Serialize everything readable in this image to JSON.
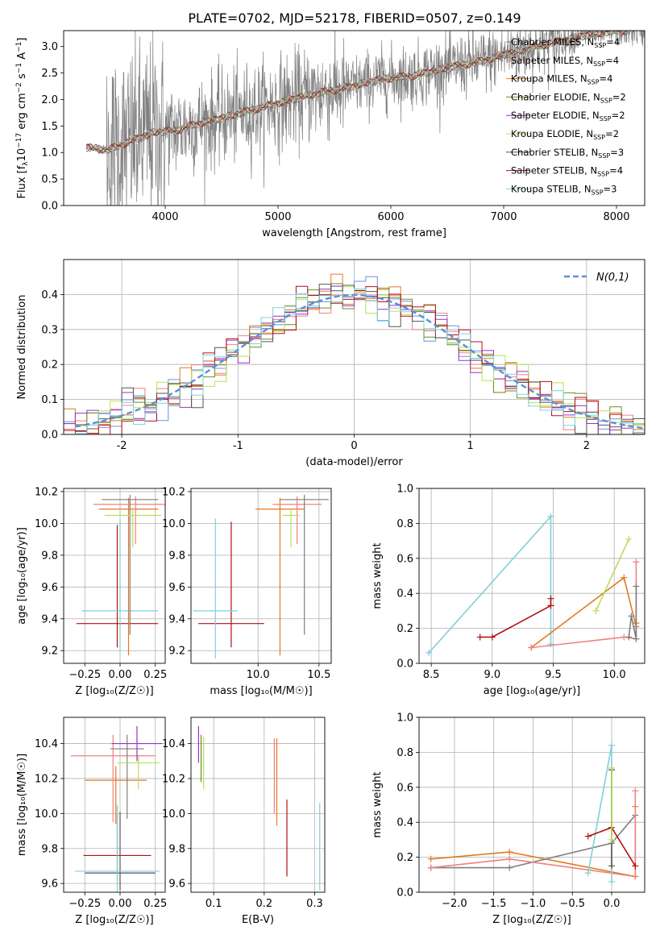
{
  "figure": {
    "title": "PLATE=0702, MJD=52178, FIBERID=0507, z=0.149"
  },
  "models": [
    {
      "name": "Chabrier MILES",
      "nssp": 4,
      "color": "#7f7f7f"
    },
    {
      "name": "Salpeter MILES",
      "nssp": 4,
      "color": "#f08080"
    },
    {
      "name": "Kroupa MILES",
      "nssp": 4,
      "color": "#e07b20"
    },
    {
      "name": "Chabrier ELODIE",
      "nssp": 2,
      "color": "#6b8e23"
    },
    {
      "name": "Salpeter ELODIE",
      "nssp": 2,
      "color": "#9b30c8"
    },
    {
      "name": "Kroupa ELODIE",
      "nssp": 2,
      "color": "#b8e05a"
    },
    {
      "name": "Chabrier STELIB",
      "nssp": 3,
      "color": "#555555"
    },
    {
      "name": "Salpeter STELIB",
      "nssp": 4,
      "color": "#b01010"
    },
    {
      "name": "Kroupa STELIB",
      "nssp": 3,
      "color": "#80d0d8"
    }
  ],
  "chart_data": [
    {
      "id": "spectrum",
      "type": "line",
      "xlabel": "wavelength [Angstrom, rest frame]",
      "ylabel_parts": {
        "a": "Flux [f",
        "b": "λ",
        "c": "10",
        "d": "−17",
        "e": " erg cm",
        "f": "−2",
        "g": " s",
        "h": "−1",
        "i": " A",
        "j": "−1",
        "k": "]"
      },
      "xlim": [
        3100,
        8250
      ],
      "ylim": [
        0,
        3.3
      ],
      "xticks": [
        4000,
        5000,
        6000,
        7000,
        8000
      ],
      "yticks": [
        0.0,
        0.5,
        1.0,
        1.5,
        2.0,
        2.5,
        3.0
      ],
      "model_continuum": {
        "x": [
          3300,
          3500,
          3700,
          3900,
          4100,
          4300,
          4500,
          4800,
          5000,
          5300,
          5600,
          5900,
          6200,
          6500,
          6800,
          7100,
          7400,
          7700,
          8000
        ],
        "y": [
          1.1,
          1.05,
          1.22,
          1.38,
          1.42,
          1.55,
          1.65,
          1.82,
          1.93,
          2.1,
          2.22,
          2.38,
          2.45,
          2.6,
          2.72,
          2.9,
          3.05,
          3.2,
          3.3
        ]
      }
    },
    {
      "id": "residuals",
      "type": "step",
      "xlabel": "(data-model)/error",
      "ylabel": "Normed distribution",
      "xlim": [
        -2.5,
        2.5
      ],
      "ylim": [
        0,
        0.5
      ],
      "xticks": [
        -2,
        -1,
        0,
        1,
        2
      ],
      "yticks": [
        0.0,
        0.1,
        0.2,
        0.3,
        0.4
      ],
      "legend": "N(0,1)",
      "legend_position": "top-right",
      "reference_curve": "standard normal"
    },
    {
      "id": "age-vs-Z",
      "type": "errorbar",
      "xlabel": "Z [log₁₀(Z/Z☉)]",
      "ylabel": "age  [log₁₀(age/yr)]",
      "xlim": [
        -0.4,
        0.32
      ],
      "ylim": [
        9.12,
        10.22
      ],
      "xticks": [
        -0.25,
        0.0,
        0.25
      ],
      "yticks": [
        9.2,
        9.4,
        9.6,
        9.8,
        10.0,
        10.2
      ],
      "points": [
        {
          "model": 7,
          "x": -0.02,
          "xerr": [
            0.29,
            0.29
          ],
          "y": 9.37,
          "yerr": [
            0.15,
            0.62
          ]
        },
        {
          "model": 8,
          "x": 0.0,
          "xerr": [
            0.27,
            0.27
          ],
          "y": 9.45,
          "yerr": [
            0.25,
            0.58
          ]
        },
        {
          "model": 2,
          "x": 0.06,
          "xerr": [
            0.21,
            0.21
          ],
          "y": 10.09,
          "yerr": [
            0.92,
            0.07
          ]
        },
        {
          "model": 1,
          "x": 0.11,
          "xerr": [
            0.3,
            0.3
          ],
          "y": 10.12,
          "yerr": [
            0.25,
            0.05
          ]
        },
        {
          "model": 0,
          "x": 0.07,
          "xerr": [
            0.2,
            0.2
          ],
          "y": 10.15,
          "yerr": [
            0.85,
            0.03
          ]
        },
        {
          "model": 5,
          "x": 0.09,
          "xerr": [
            0.2,
            0.2
          ],
          "y": 10.05,
          "yerr": [
            0.2,
            0.05
          ]
        }
      ]
    },
    {
      "id": "age-vs-mass",
      "type": "errorbar",
      "xlabel": "mass [log₁₀(M/M☉)]",
      "ylabel": "",
      "xlim": [
        9.45,
        10.6
      ],
      "ylim": [
        9.12,
        10.22
      ],
      "xticks": [
        10.0,
        10.5
      ],
      "yticks": [
        9.2,
        9.4,
        9.6,
        9.8,
        10.0,
        10.2
      ],
      "points": [
        {
          "model": 7,
          "x": 9.78,
          "xerr": [
            0.27,
            0.27
          ],
          "y": 9.37,
          "yerr": [
            0.15,
            0.64
          ]
        },
        {
          "model": 8,
          "x": 9.65,
          "xerr": [
            0.18,
            0.18
          ],
          "y": 9.45,
          "yerr": [
            0.3,
            0.58
          ]
        },
        {
          "model": 2,
          "x": 10.18,
          "xerr": [
            0.2,
            0.2
          ],
          "y": 10.09,
          "yerr": [
            0.92,
            0.07
          ]
        },
        {
          "model": 1,
          "x": 10.32,
          "xerr": [
            0.2,
            0.2
          ],
          "y": 10.12,
          "yerr": [
            0.25,
            0.05
          ]
        },
        {
          "model": 0,
          "x": 10.38,
          "xerr": [
            0.2,
            0.2
          ],
          "y": 10.15,
          "yerr": [
            0.85,
            0.03
          ]
        },
        {
          "model": 5,
          "x": 10.27,
          "xerr": [
            0.07,
            0.07
          ],
          "y": 10.05,
          "yerr": [
            0.2,
            0.05
          ]
        }
      ]
    },
    {
      "id": "weight-vs-age",
      "type": "line",
      "xlabel": "age  [log₁₀(age/yr)]",
      "ylabel": "mass weight",
      "xlim": [
        8.4,
        10.25
      ],
      "ylim": [
        0,
        1.0
      ],
      "xticks": [
        8.5,
        9.0,
        9.5,
        10.0
      ],
      "yticks": [
        0.0,
        0.2,
        0.4,
        0.6,
        0.8,
        1.0
      ],
      "series": [
        {
          "model": 8,
          "x": [
            8.48,
            9.48,
            9.48
          ],
          "y": [
            0.06,
            0.84,
            0.11
          ]
        },
        {
          "model": 7,
          "x": [
            8.9,
            9.0,
            9.48,
            9.48
          ],
          "y": [
            0.15,
            0.15,
            0.33,
            0.37
          ]
        },
        {
          "model": 2,
          "x": [
            9.32,
            10.08,
            10.18,
            10.18
          ],
          "y": [
            0.09,
            0.49,
            0.21,
            0.23
          ]
        },
        {
          "model": 1,
          "x": [
            9.32,
            10.08,
            10.18,
            10.18
          ],
          "y": [
            0.09,
            0.15,
            0.14,
            0.58
          ]
        },
        {
          "model": 5,
          "x": [
            9.85,
            10.12
          ],
          "y": [
            0.3,
            0.71
          ]
        },
        {
          "model": 0,
          "x": [
            10.12,
            10.14,
            10.18,
            10.18
          ],
          "y": [
            0.15,
            0.27,
            0.14,
            0.44
          ]
        }
      ]
    },
    {
      "id": "mass-vs-Z",
      "type": "errorbar",
      "xlabel": "Z [log₁₀(Z/Z☉)]",
      "ylabel": "mass [log₁₀(M/M☉)]",
      "xlim": [
        -0.4,
        0.32
      ],
      "ylim": [
        9.55,
        10.55
      ],
      "xticks": [
        -0.25,
        0.0,
        0.25
      ],
      "yticks": [
        9.6,
        9.8,
        10.0,
        10.2,
        10.4
      ],
      "points": [
        {
          "model": 7,
          "x": -0.02,
          "xerr": [
            0.24,
            0.24
          ],
          "y": 9.76,
          "yerr": [
            0.12,
            0.24
          ]
        },
        {
          "model": 6,
          "x": 0.0,
          "xerr": [
            0.25,
            0.25
          ],
          "y": 9.66,
          "yerr": [
            0.1,
            0.35
          ]
        },
        {
          "model": 8,
          "x": -0.02,
          "xerr": [
            0.3,
            0.3
          ],
          "y": 9.67,
          "yerr": [
            0.12,
            0.38
          ]
        },
        {
          "model": 2,
          "x": -0.03,
          "xerr": [
            0.22,
            0.22
          ],
          "y": 10.19,
          "yerr": [
            0.25,
            0.08
          ]
        },
        {
          "model": 1,
          "x": -0.05,
          "xerr": [
            0.3,
            0.3
          ],
          "y": 10.33,
          "yerr": [
            0.38,
            0.12
          ]
        },
        {
          "model": 0,
          "x": 0.05,
          "xerr": [
            0.12,
            0.12
          ],
          "y": 10.37,
          "yerr": [
            0.4,
            0.08
          ]
        },
        {
          "model": 5,
          "x": 0.13,
          "xerr": [
            0.15,
            0.15
          ],
          "y": 10.29,
          "yerr": [
            0.15,
            0.04
          ]
        },
        {
          "model": 4,
          "x": 0.12,
          "xerr": [
            0.18,
            0.18
          ],
          "y": 10.4,
          "yerr": [
            0.1,
            0.1
          ]
        }
      ]
    },
    {
      "id": "mass-vs-ebv",
      "type": "errorbar",
      "xlabel": "E(B-V)",
      "ylabel": "",
      "xlim": [
        0.055,
        0.32
      ],
      "ylim": [
        9.55,
        10.55
      ],
      "xticks": [
        0.1,
        0.2,
        0.3
      ],
      "yticks": [
        9.6,
        9.8,
        10.0,
        10.2,
        10.4
      ],
      "points": [
        {
          "model": 4,
          "x": 0.07,
          "y": 10.4,
          "yerr": [
            0.11,
            0.1
          ]
        },
        {
          "model": 5,
          "x": 0.08,
          "y": 10.29,
          "yerr": [
            0.15,
            0.15
          ]
        },
        {
          "model": 3,
          "x": 0.075,
          "y": 10.3,
          "yerr": [
            0.12,
            0.15
          ]
        },
        {
          "model": 1,
          "x": 0.22,
          "y": 10.3,
          "yerr": [
            0.3,
            0.13
          ]
        },
        {
          "model": 2,
          "x": 0.225,
          "y": 10.18,
          "yerr": [
            0.25,
            0.25
          ]
        },
        {
          "model": 7,
          "x": 0.245,
          "y": 9.86,
          "yerr": [
            0.22,
            0.22
          ]
        },
        {
          "model": 8,
          "x": 0.31,
          "y": 9.78,
          "yerr": [
            0.22,
            0.28
          ]
        }
      ]
    },
    {
      "id": "weight-vs-Z",
      "type": "line",
      "xlabel": "Z [log₁₀(Z/Z☉)]",
      "ylabel": "mass weight",
      "xlim": [
        -2.45,
        0.42
      ],
      "ylim": [
        0,
        1.0
      ],
      "xticks": [
        -2.0,
        -1.5,
        -1.0,
        -0.5,
        0.0
      ],
      "yticks": [
        0.0,
        0.2,
        0.4,
        0.6,
        0.8,
        1.0
      ],
      "series": [
        {
          "model": 2,
          "x": [
            -2.3,
            -1.3,
            0.3,
            0.3
          ],
          "y": [
            0.19,
            0.23,
            0.09,
            0.49
          ]
        },
        {
          "model": 0,
          "x": [
            -2.3,
            -1.3,
            0.0,
            0.3
          ],
          "y": [
            0.14,
            0.14,
            0.28,
            0.44
          ]
        },
        {
          "model": 1,
          "x": [
            -2.3,
            -1.3,
            0.3,
            0.3
          ],
          "y": [
            0.14,
            0.19,
            0.09,
            0.58
          ]
        },
        {
          "model": 8,
          "x": [
            -0.3,
            0.0,
            0.0
          ],
          "y": [
            0.11,
            0.84,
            0.06
          ]
        },
        {
          "model": 7,
          "x": [
            -0.3,
            0.0,
            0.3
          ],
          "y": [
            0.32,
            0.37,
            0.15
          ]
        },
        {
          "model": 6,
          "x": [
            0.0,
            0.0
          ],
          "y": [
            0.15,
            0.7
          ]
        },
        {
          "model": 5,
          "x": [
            0.0,
            0.0
          ],
          "y": [
            0.3,
            0.71
          ]
        }
      ]
    }
  ]
}
